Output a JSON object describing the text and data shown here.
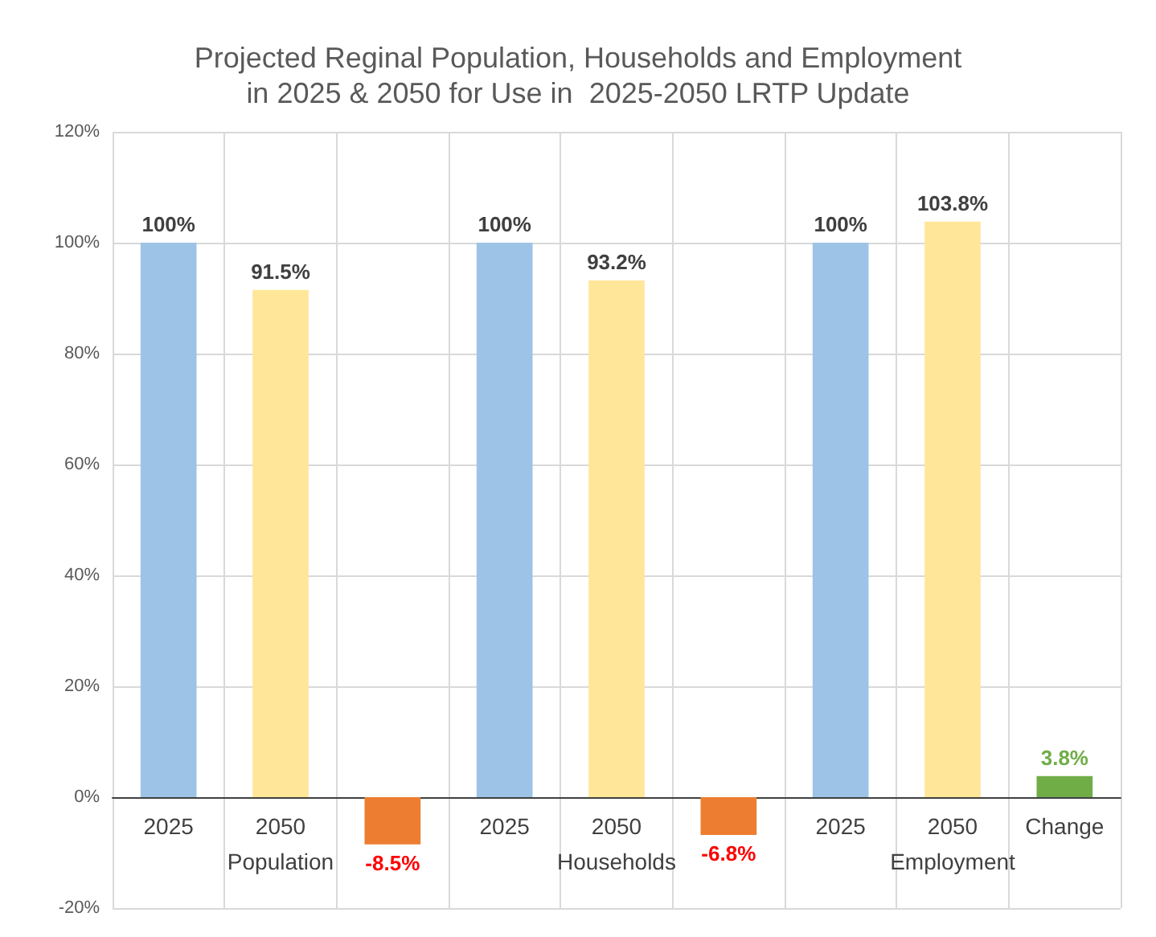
{
  "chart_data": {
    "type": "bar",
    "title": "Projected Reginal Population, Households and Employment\nin 2025 & 2050 for Use in  2025-2050 LRTP Update",
    "categories": [
      "2025",
      "2050",
      null,
      "2025",
      "2050",
      null,
      "2025",
      "2050",
      "Change"
    ],
    "values": [
      100,
      91.5,
      -8.5,
      100,
      93.2,
      -6.8,
      100,
      103.8,
      3.8
    ],
    "colors": [
      "#9dc3e6",
      "#ffe699",
      "#ed7d31",
      "#9dc3e6",
      "#ffe699",
      "#ed7d31",
      "#9dc3e6",
      "#ffe699",
      "#70ad47"
    ],
    "value_labels": [
      "100%",
      "91.5%",
      "-8.5%",
      "100%",
      "93.2%",
      "-6.8%",
      "100%",
      "103.8%",
      "3.8%"
    ],
    "ylim": [
      -20,
      120
    ],
    "yticks": [
      {
        "value": -20,
        "label": "-20%"
      },
      {
        "value": 0,
        "label": "0%"
      },
      {
        "value": 20,
        "label": "20%"
      },
      {
        "value": 40,
        "label": "40%"
      },
      {
        "value": 60,
        "label": "60%"
      },
      {
        "value": 80,
        "label": "80%"
      },
      {
        "value": 100,
        "label": "100%"
      },
      {
        "value": 120,
        "label": "120%"
      }
    ],
    "annotations": [
      "Population",
      "Households",
      "Employment"
    ],
    "grid": true
  }
}
